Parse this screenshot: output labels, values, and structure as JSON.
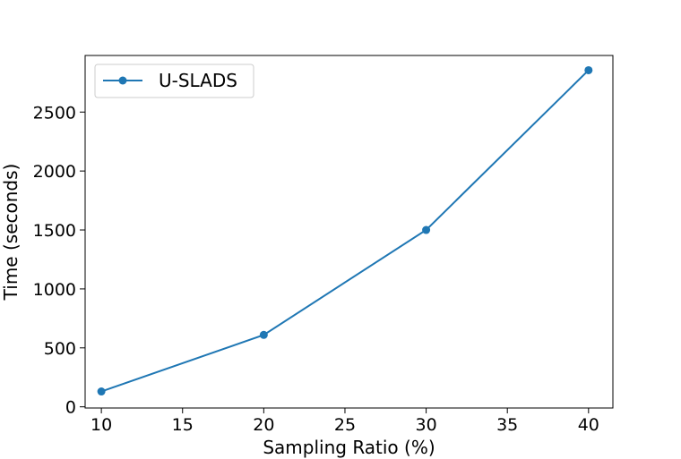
{
  "chart_data": {
    "type": "line",
    "xlabel": "Sampling Ratio (%)",
    "ylabel": "Time (seconds)",
    "x": [
      10,
      20,
      30,
      40
    ],
    "series": [
      {
        "name": "U-SLADS",
        "values": [
          130,
          610,
          1500,
          2855
        ],
        "color": "#1f77b4",
        "marker": "circle"
      }
    ],
    "xlim": [
      9,
      41.5
    ],
    "ylim": [
      -10,
      2980
    ],
    "xticks": [
      10,
      15,
      20,
      25,
      30,
      35,
      40
    ],
    "yticks": [
      0,
      500,
      1000,
      1500,
      2000,
      2500
    ],
    "grid": false,
    "legend_position": "top-left"
  }
}
